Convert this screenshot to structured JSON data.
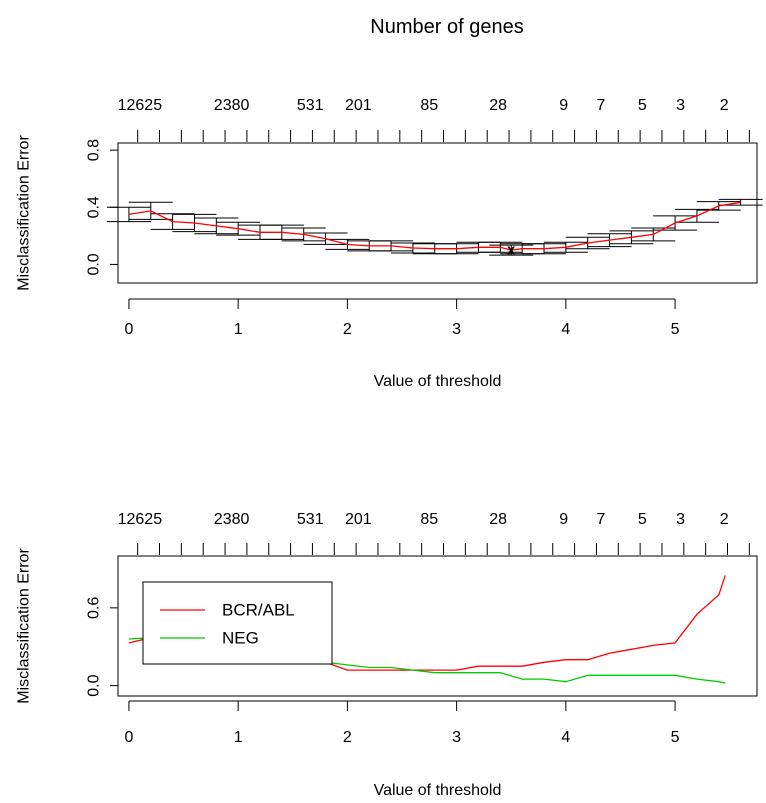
{
  "title": "Number of genes",
  "chart_data": [
    {
      "type": "line",
      "title": "Number of genes",
      "xlabel": "Value of threshold",
      "ylabel": "Misclassification Error",
      "xlim": [
        -0.1,
        5.75
      ],
      "ylim": [
        -0.13,
        0.85
      ],
      "x_ticks": [
        0,
        1,
        2,
        3,
        4,
        5
      ],
      "y_ticks": [
        0.0,
        0.4,
        0.8
      ],
      "y_tick_labels": [
        "0.0",
        "0.4",
        "0.8"
      ],
      "top_axis_labels": [
        "12625",
        "2380",
        "531",
        "201",
        "85",
        "28",
        "9",
        "7",
        "5",
        "3",
        "2"
      ],
      "top_axis_label_x": [
        0.1,
        0.94,
        1.66,
        2.1,
        2.75,
        3.38,
        3.98,
        4.32,
        4.7,
        5.05,
        5.45
      ],
      "top_axis_ticks": [
        0.08,
        0.28,
        0.48,
        0.68,
        0.88,
        1.08,
        1.28,
        1.48,
        1.68,
        1.88,
        2.08,
        2.28,
        2.48,
        2.68,
        2.88,
        3.08,
        3.28,
        3.48,
        3.68,
        3.88,
        4.08,
        4.28,
        4.48,
        4.68,
        4.88,
        5.08,
        5.28,
        5.48,
        5.68
      ],
      "grid": false,
      "series": [
        {
          "color": "#ff0000",
          "x": [
            0.0,
            0.2,
            0.4,
            0.6,
            0.8,
            1.0,
            1.2,
            1.4,
            1.6,
            1.8,
            2.0,
            2.2,
            2.4,
            2.6,
            2.8,
            3.0,
            3.2,
            3.4,
            3.5,
            3.6,
            3.8,
            4.0,
            4.2,
            4.4,
            4.6,
            4.8,
            5.0,
            5.2,
            5.4,
            5.6
          ],
          "y": [
            0.35,
            0.375,
            0.3,
            0.29,
            0.27,
            0.25,
            0.225,
            0.225,
            0.21,
            0.18,
            0.14,
            0.13,
            0.13,
            0.115,
            0.11,
            0.11,
            0.12,
            0.12,
            0.1,
            0.11,
            0.11,
            0.12,
            0.15,
            0.17,
            0.19,
            0.21,
            0.29,
            0.34,
            0.41,
            0.435
          ],
          "se": [
            0.05,
            0.06,
            0.055,
            0.06,
            0.055,
            0.045,
            0.05,
            0.05,
            0.045,
            0.04,
            0.035,
            0.035,
            0.035,
            0.035,
            0.035,
            0.035,
            0.035,
            0.035,
            0.035,
            0.035,
            0.035,
            0.035,
            0.04,
            0.045,
            0.045,
            0.045,
            0.05,
            0.045,
            0.03,
            0.02
          ]
        }
      ],
      "min_marker": {
        "x": 3.5,
        "y": 0.1,
        "label": "x"
      }
    },
    {
      "type": "line",
      "title": "",
      "xlabel": "Value of threshold",
      "ylabel": "Misclassification Error",
      "xlim": [
        -0.1,
        5.75
      ],
      "ylim": [
        -0.08,
        1.0
      ],
      "x_ticks": [
        0,
        1,
        2,
        3,
        4,
        5
      ],
      "y_ticks": [
        0.0,
        0.6
      ],
      "y_tick_labels": [
        "0.0",
        "0.6"
      ],
      "top_axis_labels": [
        "12625",
        "2380",
        "531",
        "201",
        "85",
        "28",
        "9",
        "7",
        "5",
        "3",
        "2"
      ],
      "top_axis_label_x": [
        0.1,
        0.94,
        1.66,
        2.1,
        2.75,
        3.38,
        3.98,
        4.32,
        4.7,
        5.05,
        5.45
      ],
      "top_axis_ticks": [
        0.08,
        0.28,
        0.48,
        0.68,
        0.88,
        1.08,
        1.28,
        1.48,
        1.68,
        1.88,
        2.08,
        2.28,
        2.48,
        2.68,
        2.88,
        3.08,
        3.28,
        3.48,
        3.68,
        3.88,
        4.08,
        4.28,
        4.48,
        4.68,
        4.88,
        5.08,
        5.28,
        5.48,
        5.68
      ],
      "grid": false,
      "legend": "upper-left, boxed",
      "series": [
        {
          "name": "BCR/ABL",
          "color": "#ff0000",
          "x": [
            0.0,
            0.2,
            0.4,
            0.6,
            0.8,
            1.0,
            1.2,
            1.4,
            1.6,
            1.8,
            2.0,
            2.2,
            2.4,
            2.6,
            2.8,
            3.0,
            3.2,
            3.4,
            3.6,
            3.8,
            4.0,
            4.2,
            4.4,
            4.6,
            4.8,
            5.0,
            5.2,
            5.4,
            5.46
          ],
          "y": [
            0.33,
            0.37,
            0.25,
            0.22,
            0.22,
            0.22,
            0.22,
            0.22,
            0.22,
            0.18,
            0.12,
            0.12,
            0.12,
            0.12,
            0.12,
            0.12,
            0.15,
            0.15,
            0.15,
            0.18,
            0.2,
            0.2,
            0.25,
            0.28,
            0.31,
            0.33,
            0.55,
            0.7,
            0.85
          ]
        },
        {
          "name": "NEG",
          "color": "#00cc00",
          "x": [
            0.0,
            0.2,
            0.4,
            0.6,
            0.8,
            1.0,
            1.2,
            1.4,
            1.6,
            1.8,
            2.0,
            2.2,
            2.4,
            2.6,
            2.8,
            3.0,
            3.2,
            3.4,
            3.6,
            3.8,
            4.0,
            4.2,
            4.4,
            4.6,
            4.8,
            5.0,
            5.2,
            5.4,
            5.46
          ],
          "y": [
            0.36,
            0.37,
            0.34,
            0.34,
            0.29,
            0.25,
            0.21,
            0.21,
            0.18,
            0.18,
            0.16,
            0.14,
            0.14,
            0.12,
            0.1,
            0.1,
            0.1,
            0.1,
            0.05,
            0.05,
            0.03,
            0.08,
            0.08,
            0.08,
            0.08,
            0.08,
            0.05,
            0.03,
            0.02
          ]
        }
      ]
    }
  ]
}
